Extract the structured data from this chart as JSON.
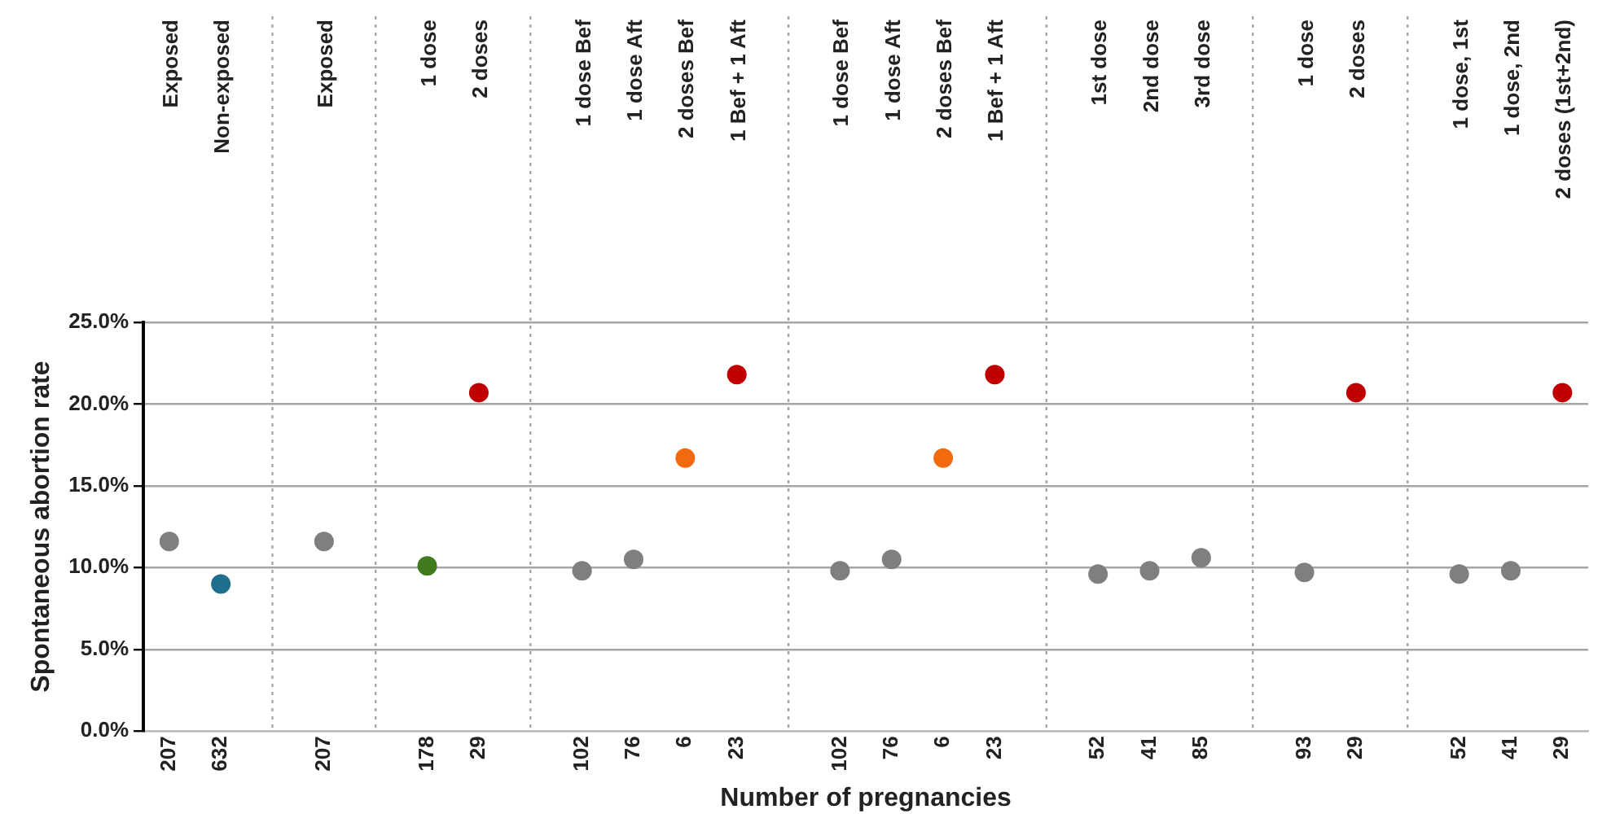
{
  "chart_data": {
    "type": "scatter",
    "xlabel": "Number of pregnancies",
    "ylabel": "Spontaneous abortion rate",
    "categories": [
      "207",
      "632",
      null,
      "207",
      null,
      "178",
      "29",
      null,
      "102",
      "76",
      "6",
      "23",
      null,
      "102",
      "76",
      "6",
      "23",
      null,
      "52",
      "41",
      "85",
      null,
      "93",
      "29",
      null,
      "52",
      "41",
      "29"
    ],
    "annotations": [
      "Exposed",
      "Non-exposed",
      "Exposed",
      "1 dose",
      "2 doses",
      "1 dose Bef",
      "1 dose Aft",
      "2 doses Bef",
      "1 Bef + 1 Aft",
      "1 dose Bef",
      "1 dose Aft",
      "2 doses Bef",
      "1 Bef + 1 Aft",
      "1st dose",
      "2nd dose",
      "3rd dose",
      "1 dose",
      "2 doses",
      "1 dose, 1st",
      "1 dose, 2nd",
      "2 doses (1st+2nd)"
    ],
    "ylim": [
      0,
      25
    ],
    "yticks": [
      {
        "value": 0,
        "label": "0.0%"
      },
      {
        "value": 5,
        "label": "5.0%"
      },
      {
        "value": 10,
        "label": "10.0%"
      },
      {
        "value": 15,
        "label": "15.0%"
      },
      {
        "value": 20,
        "label": "20.0%"
      },
      {
        "value": 25,
        "label": "25.0%"
      }
    ],
    "grid": true,
    "legend": false,
    "marker": "circle",
    "series": [
      {
        "color": "#7f7f7f",
        "values": [
          11.6,
          null,
          null,
          11.6,
          null,
          null,
          null,
          null,
          9.8,
          10.5,
          null,
          null,
          null,
          9.8,
          10.5,
          null,
          null,
          null,
          9.6,
          9.8,
          10.6,
          null,
          9.7,
          null,
          null,
          9.6,
          9.8,
          null
        ]
      },
      {
        "color": "#1f6e8c",
        "values": [
          null,
          9.0,
          null,
          null,
          null,
          null,
          null,
          null,
          null,
          null,
          null,
          null,
          null,
          null,
          null,
          null,
          null,
          null,
          null,
          null,
          null,
          null,
          null,
          null,
          null,
          null,
          null,
          null
        ]
      },
      {
        "color": "#3f7a1e",
        "values": [
          null,
          null,
          null,
          null,
          null,
          10.1,
          null,
          null,
          null,
          null,
          null,
          null,
          null,
          null,
          null,
          null,
          null,
          null,
          null,
          null,
          null,
          null,
          null,
          null,
          null,
          null,
          null,
          null
        ]
      },
      {
        "color": "#f26a10",
        "values": [
          null,
          null,
          null,
          null,
          null,
          null,
          null,
          null,
          null,
          null,
          16.7,
          null,
          null,
          null,
          null,
          16.7,
          null,
          null,
          null,
          null,
          null,
          null,
          null,
          null,
          null,
          null,
          null,
          null
        ]
      },
      {
        "color": "#c00000",
        "values": [
          null,
          null,
          null,
          null,
          null,
          null,
          20.7,
          null,
          null,
          null,
          null,
          21.8,
          null,
          null,
          null,
          null,
          21.8,
          null,
          null,
          null,
          null,
          null,
          null,
          20.7,
          null,
          null,
          null,
          20.7
        ]
      }
    ]
  }
}
